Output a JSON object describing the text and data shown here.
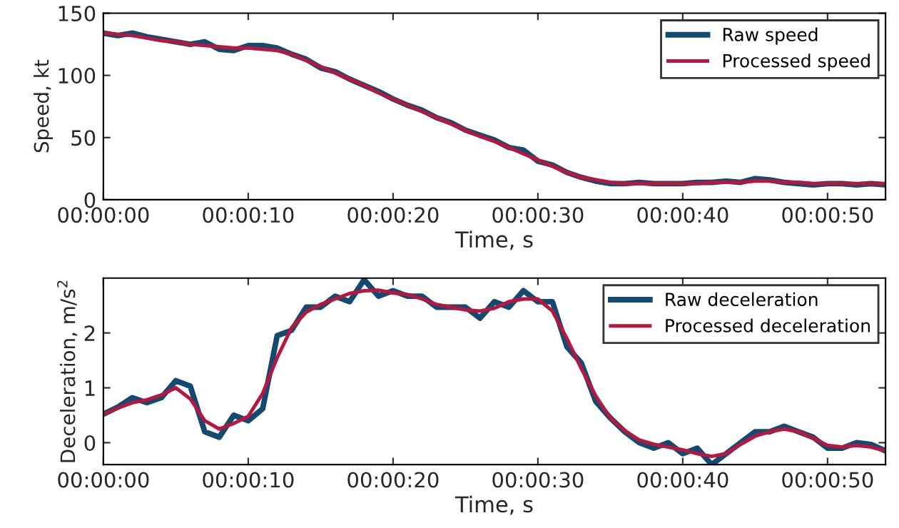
{
  "chart_data": [
    {
      "type": "line",
      "xlabel": "Time, s",
      "ylabel": "Speed, kt",
      "x": [
        0,
        1,
        2,
        3,
        4,
        5,
        6,
        7,
        8,
        9,
        10,
        11,
        12,
        13,
        14,
        15,
        16,
        17,
        18,
        19,
        20,
        21,
        22,
        23,
        24,
        25,
        26,
        27,
        28,
        29,
        30,
        31,
        32,
        33,
        34,
        35,
        36,
        37,
        38,
        39,
        40,
        41,
        42,
        43,
        44,
        45,
        46,
        47,
        48,
        49,
        50,
        51,
        52,
        53,
        54
      ],
      "series": [
        {
          "name": "Raw speed",
          "color": "#134a72",
          "values": [
            134,
            132,
            134,
            131,
            129,
            127,
            125,
            127,
            121,
            120,
            124,
            124,
            122,
            117,
            113,
            106,
            103,
            97,
            92,
            87,
            81,
            76,
            72,
            66,
            62,
            56,
            52,
            48,
            42,
            40,
            31,
            28,
            22,
            18,
            15,
            13,
            13,
            14,
            13,
            13,
            13,
            14,
            14,
            15,
            14,
            17,
            16,
            14,
            13,
            12,
            13,
            13,
            12,
            13,
            12
          ]
        },
        {
          "name": "Processed speed",
          "color": "#b5173f",
          "values": [
            134,
            133,
            132,
            130,
            128,
            127,
            125,
            124,
            123,
            122,
            122,
            121,
            120,
            117,
            112,
            107,
            102,
            97,
            92,
            86,
            81,
            76,
            71,
            66,
            61,
            56,
            51,
            47,
            42,
            37,
            32,
            27,
            22,
            18,
            16,
            14,
            13,
            13,
            13,
            13,
            13,
            13,
            14,
            14,
            14,
            15,
            15,
            14,
            14,
            13,
            13,
            13,
            13,
            13,
            13
          ]
        }
      ],
      "xlim": [
        0,
        54
      ],
      "xticks": [
        {
          "value": 0,
          "label": "00:00:00"
        },
        {
          "value": 10,
          "label": "00:00:10"
        },
        {
          "value": 20,
          "label": "00:00:20"
        },
        {
          "value": 30,
          "label": "00:00:30"
        },
        {
          "value": 40,
          "label": "00:00:40"
        },
        {
          "value": 50,
          "label": "00:00:50"
        }
      ],
      "ylim": [
        0,
        150
      ],
      "yticks": [
        0,
        50,
        100,
        150
      ],
      "legend": "top right",
      "grid": false
    },
    {
      "type": "line",
      "xlabel": "Time, s",
      "ylabel": "Deceleration, m/s$^{2}$",
      "x": [
        0,
        1,
        2,
        3,
        4,
        5,
        6,
        7,
        8,
        9,
        10,
        11,
        12,
        13,
        14,
        15,
        16,
        17,
        18,
        19,
        20,
        21,
        22,
        23,
        24,
        25,
        26,
        27,
        28,
        29,
        30,
        31,
        32,
        33,
        34,
        35,
        36,
        37,
        38,
        39,
        40,
        41,
        42,
        43,
        44,
        45,
        46,
        47,
        48,
        49,
        50,
        51,
        52,
        53,
        54
      ],
      "series": [
        {
          "name": "Raw deceleration",
          "color": "#134a72",
          "values": [
            0.52,
            0.65,
            0.82,
            0.73,
            0.82,
            1.13,
            1.03,
            0.2,
            0.1,
            0.5,
            0.4,
            0.62,
            1.95,
            2.05,
            2.47,
            2.47,
            2.67,
            2.57,
            2.97,
            2.67,
            2.77,
            2.67,
            2.67,
            2.47,
            2.47,
            2.47,
            2.27,
            2.57,
            2.47,
            2.77,
            2.57,
            2.57,
            1.75,
            1.45,
            0.75,
            0.45,
            0.2,
            0.0,
            -0.1,
            0.0,
            -0.2,
            -0.1,
            -0.4,
            -0.2,
            0.0,
            0.2,
            0.2,
            0.3,
            0.2,
            0.1,
            -0.1,
            -0.1,
            0.0,
            -0.03,
            -0.15
          ]
        },
        {
          "name": "Processed deceleration",
          "color": "#b5173f",
          "values": [
            0.52,
            0.63,
            0.73,
            0.78,
            0.87,
            1.0,
            0.8,
            0.4,
            0.25,
            0.35,
            0.48,
            0.9,
            1.55,
            2.1,
            2.38,
            2.52,
            2.62,
            2.72,
            2.77,
            2.78,
            2.73,
            2.7,
            2.62,
            2.52,
            2.47,
            2.42,
            2.4,
            2.45,
            2.57,
            2.62,
            2.62,
            2.4,
            1.9,
            1.35,
            0.85,
            0.45,
            0.22,
            0.05,
            -0.03,
            -0.08,
            -0.13,
            -0.2,
            -0.25,
            -0.2,
            -0.03,
            0.12,
            0.2,
            0.25,
            0.2,
            0.08,
            -0.05,
            -0.08,
            -0.05,
            -0.08,
            -0.15
          ]
        }
      ],
      "xlim": [
        0,
        54
      ],
      "xticks": [
        {
          "value": 0,
          "label": "00:00:00"
        },
        {
          "value": 10,
          "label": "00:00:10"
        },
        {
          "value": 20,
          "label": "00:00:20"
        },
        {
          "value": 30,
          "label": "00:00:30"
        },
        {
          "value": 40,
          "label": "00:00:40"
        },
        {
          "value": 50,
          "label": "00:00:50"
        }
      ],
      "ylim": [
        -0.4,
        3
      ],
      "yticks": [
        0,
        1,
        2
      ],
      "legend": "top right",
      "grid": false
    }
  ]
}
